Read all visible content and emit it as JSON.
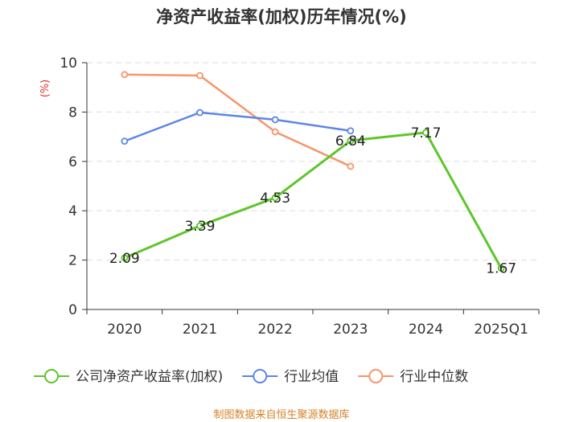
{
  "chart_data": {
    "type": "line",
    "title": "净资产收益率(加权)历年情况(%)",
    "ylabel": "(%)",
    "xlabel": "",
    "ylim": [
      0,
      10
    ],
    "yticks": [
      0,
      2,
      4,
      6,
      8,
      10
    ],
    "categories": [
      "2020",
      "2021",
      "2022",
      "2023",
      "2024",
      "2025Q1"
    ],
    "grid": true,
    "legend_position": "bottom",
    "series": [
      {
        "name": "公司净资产收益率(加权)",
        "color": "#5ec62a",
        "values": [
          2.09,
          3.39,
          4.53,
          6.84,
          7.17,
          1.67
        ],
        "labels": [
          "2.09",
          "3.39",
          "4.53",
          "6.84",
          "7.17",
          "1.67"
        ]
      },
      {
        "name": "行业均值",
        "color": "#5b86e5",
        "values": [
          6.82,
          7.98,
          7.69,
          7.24,
          null,
          null
        ]
      },
      {
        "name": "行业中位数",
        "color": "#f7956a",
        "values": [
          9.52,
          9.48,
          7.2,
          5.8,
          null,
          null
        ]
      }
    ],
    "source": "制图数据来自恒生聚源数据库"
  }
}
